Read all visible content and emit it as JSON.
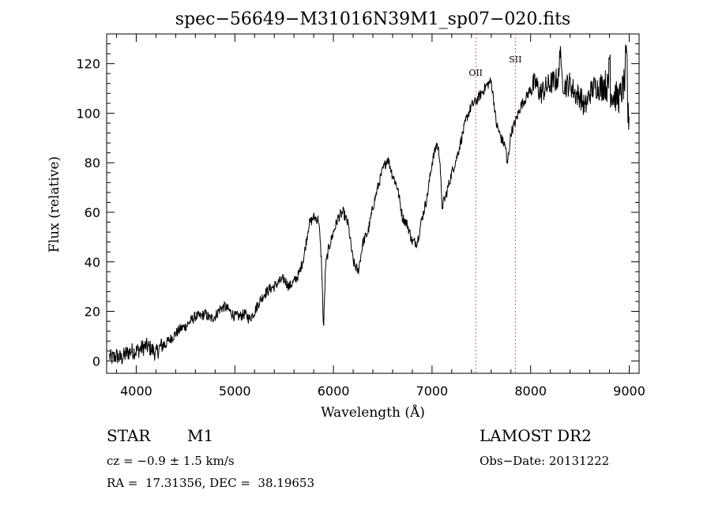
{
  "chart_data": {
    "type": "line",
    "title": "spec−56649−M31016N39M1_sp07−020.fits",
    "xlabel": "Wavelength (Å)",
    "ylabel": "Flux (relative)",
    "xlim": [
      3700,
      9100
    ],
    "ylim": [
      -5,
      132
    ],
    "x_ticks": [
      4000,
      5000,
      6000,
      7000,
      8000,
      9000
    ],
    "y_ticks": [
      0,
      20,
      40,
      60,
      80,
      100,
      120
    ],
    "grid": false,
    "annotations": [
      {
        "text": "OII",
        "x": 7443,
        "line_style": "dotted",
        "color": "#c33"
      },
      {
        "text": "SII",
        "x": 7845,
        "line_style": "dotted",
        "color": "#c33"
      }
    ],
    "series": [
      {
        "color": "#000000",
        "points": [
          [
            3700,
            3
          ],
          [
            3750,
            1
          ],
          [
            3800,
            2
          ],
          [
            3850,
            1
          ],
          [
            3900,
            3
          ],
          [
            3950,
            4
          ],
          [
            4000,
            4
          ],
          [
            4050,
            5
          ],
          [
            4100,
            6
          ],
          [
            4150,
            5
          ],
          [
            4200,
            3
          ],
          [
            4250,
            6
          ],
          [
            4300,
            7
          ],
          [
            4350,
            9
          ],
          [
            4400,
            11
          ],
          [
            4450,
            13
          ],
          [
            4500,
            14
          ],
          [
            4550,
            16
          ],
          [
            4600,
            18
          ],
          [
            4650,
            18
          ],
          [
            4700,
            19
          ],
          [
            4750,
            17
          ],
          [
            4800,
            18
          ],
          [
            4850,
            21
          ],
          [
            4900,
            22
          ],
          [
            4950,
            20
          ],
          [
            5000,
            18
          ],
          [
            5050,
            18
          ],
          [
            5100,
            19
          ],
          [
            5150,
            17
          ],
          [
            5200,
            20
          ],
          [
            5250,
            24
          ],
          [
            5300,
            27
          ],
          [
            5350,
            29
          ],
          [
            5400,
            30
          ],
          [
            5450,
            32
          ],
          [
            5500,
            33
          ],
          [
            5550,
            30
          ],
          [
            5600,
            32
          ],
          [
            5650,
            35
          ],
          [
            5700,
            42
          ],
          [
            5750,
            55
          ],
          [
            5800,
            58
          ],
          [
            5850,
            57
          ],
          [
            5880,
            40
          ],
          [
            5900,
            12
          ],
          [
            5920,
            38
          ],
          [
            5950,
            45
          ],
          [
            6000,
            52
          ],
          [
            6050,
            58
          ],
          [
            6100,
            60
          ],
          [
            6150,
            55
          ],
          [
            6200,
            40
          ],
          [
            6250,
            36
          ],
          [
            6300,
            48
          ],
          [
            6350,
            52
          ],
          [
            6400,
            62
          ],
          [
            6450,
            70
          ],
          [
            6500,
            77
          ],
          [
            6550,
            82
          ],
          [
            6600,
            75
          ],
          [
            6650,
            70
          ],
          [
            6700,
            58
          ],
          [
            6750,
            55
          ],
          [
            6800,
            48
          ],
          [
            6850,
            48
          ],
          [
            6900,
            58
          ],
          [
            6950,
            66
          ],
          [
            7000,
            80
          ],
          [
            7050,
            88
          ],
          [
            7080,
            82
          ],
          [
            7100,
            62
          ],
          [
            7150,
            68
          ],
          [
            7200,
            76
          ],
          [
            7250,
            82
          ],
          [
            7300,
            90
          ],
          [
            7350,
            98
          ],
          [
            7400,
            103
          ],
          [
            7450,
            105
          ],
          [
            7500,
            108
          ],
          [
            7550,
            111
          ],
          [
            7600,
            113
          ],
          [
            7630,
            104
          ],
          [
            7650,
            96
          ],
          [
            7700,
            90
          ],
          [
            7750,
            86
          ],
          [
            7760,
            78
          ],
          [
            7800,
            92
          ],
          [
            7850,
            97
          ],
          [
            7900,
            103
          ],
          [
            7950,
            106
          ],
          [
            8000,
            110
          ],
          [
            8050,
            112
          ],
          [
            8100,
            108
          ],
          [
            8150,
            110
          ],
          [
            8200,
            112
          ],
          [
            8250,
            113
          ],
          [
            8300,
            115
          ],
          [
            8350,
            111
          ],
          [
            8400,
            112
          ],
          [
            8450,
            108
          ],
          [
            8500,
            107
          ],
          [
            8550,
            102
          ],
          [
            8600,
            108
          ],
          [
            8650,
            111
          ],
          [
            8700,
            110
          ],
          [
            8750,
            112
          ],
          [
            8800,
            109
          ],
          [
            8850,
            107
          ],
          [
            8900,
            106
          ],
          [
            8950,
            112
          ],
          [
            9000,
            110
          ],
          [
            9050,
            108
          ]
        ]
      }
    ]
  },
  "info": {
    "object_class": "STAR",
    "subclass": "M1",
    "velocity": "cz = −0.9 ± 1.5 km/s",
    "coordinates": "RA =  17.31356, DEC =  38.19653",
    "survey": "LAMOST DR2",
    "obs_date": "Obs−Date: 20131222"
  }
}
